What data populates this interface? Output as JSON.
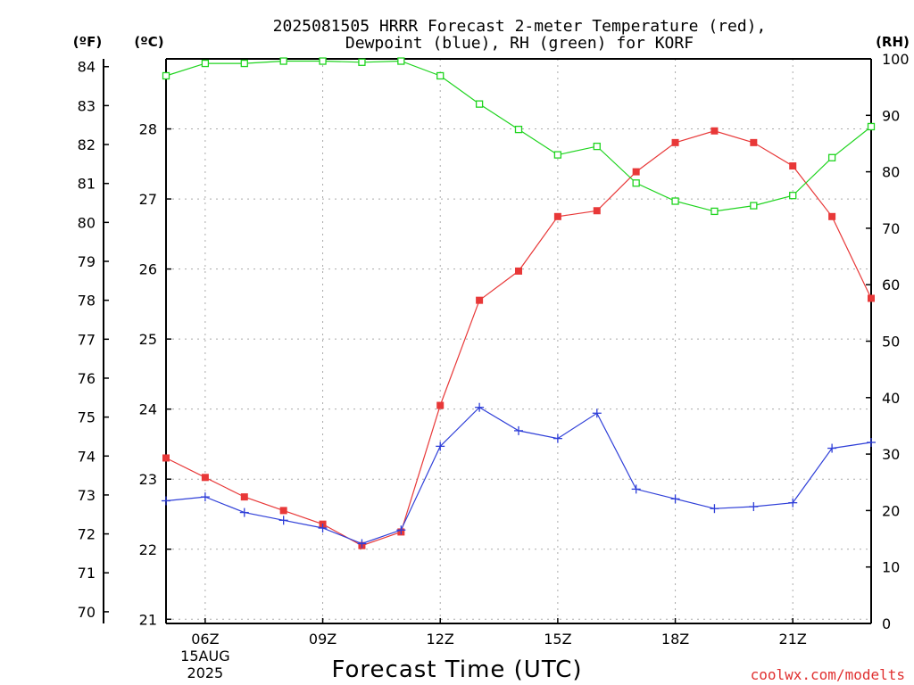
{
  "chart_data": {
    "type": "line",
    "title_line1": "2025081505 HRRR Forecast 2-meter Temperature (red),",
    "title_line2": "Dewpoint (blue), RH (green) for KORF",
    "xlabel": "Forecast Time (UTC)",
    "credit": "coolwx.com/modelts",
    "units": {
      "fahrenheit": "(ºF)",
      "celsius": "(ºC)",
      "rh": "(RH)"
    },
    "x": [
      5,
      6,
      7,
      8,
      9,
      10,
      11,
      12,
      13,
      14,
      15,
      16,
      17,
      18,
      19,
      20,
      21,
      22,
      23
    ],
    "xlim": [
      5,
      23
    ],
    "x_ticks": [
      {
        "x": 6,
        "label": "06Z",
        "sub1": "15AUG",
        "sub2": "2025"
      },
      {
        "x": 9,
        "label": "09Z"
      },
      {
        "x": 12,
        "label": "12Z"
      },
      {
        "x": 15,
        "label": "15Z"
      },
      {
        "x": 18,
        "label": "18Z"
      },
      {
        "x": 21,
        "label": "21Z"
      }
    ],
    "f_axis": {
      "lim": [
        69.7,
        84.2
      ],
      "ticks": [
        70,
        71,
        72,
        73,
        74,
        75,
        76,
        77,
        78,
        79,
        80,
        81,
        82,
        83,
        84
      ]
    },
    "c_axis": {
      "lim": [
        20.94,
        29.0
      ],
      "ticks": [
        21,
        22,
        23,
        24,
        25,
        26,
        27,
        28
      ]
    },
    "rh_axis": {
      "lim": [
        0,
        100
      ],
      "ticks": [
        0,
        10,
        20,
        30,
        40,
        50,
        60,
        70,
        80,
        90,
        100
      ]
    },
    "series": [
      {
        "axis": "f",
        "color": "#e83838",
        "marker": "filled-square",
        "values": [
          73.95,
          73.45,
          72.95,
          72.6,
          72.25,
          71.7,
          72.05,
          75.3,
          78.0,
          78.75,
          80.15,
          80.3,
          81.3,
          82.05,
          82.35,
          82.05,
          81.45,
          80.15,
          78.05
        ]
      },
      {
        "axis": "f",
        "color": "#2f3fd8",
        "marker": "plus",
        "values": [
          72.85,
          72.95,
          72.55,
          72.35,
          72.15,
          71.75,
          72.1,
          74.25,
          75.25,
          74.65,
          74.45,
          75.1,
          73.15,
          72.9,
          72.65,
          72.7,
          72.8,
          74.2,
          74.35
        ]
      },
      {
        "axis": "rh",
        "color": "#1fd41f",
        "marker": "open-square",
        "values": [
          97.0,
          99.2,
          99.2,
          99.6,
          99.6,
          99.4,
          99.6,
          97.0,
          92.0,
          87.5,
          83.0,
          84.5,
          78.0,
          74.8,
          73.0,
          74.0,
          75.8,
          82.5,
          88.0
        ]
      }
    ]
  }
}
